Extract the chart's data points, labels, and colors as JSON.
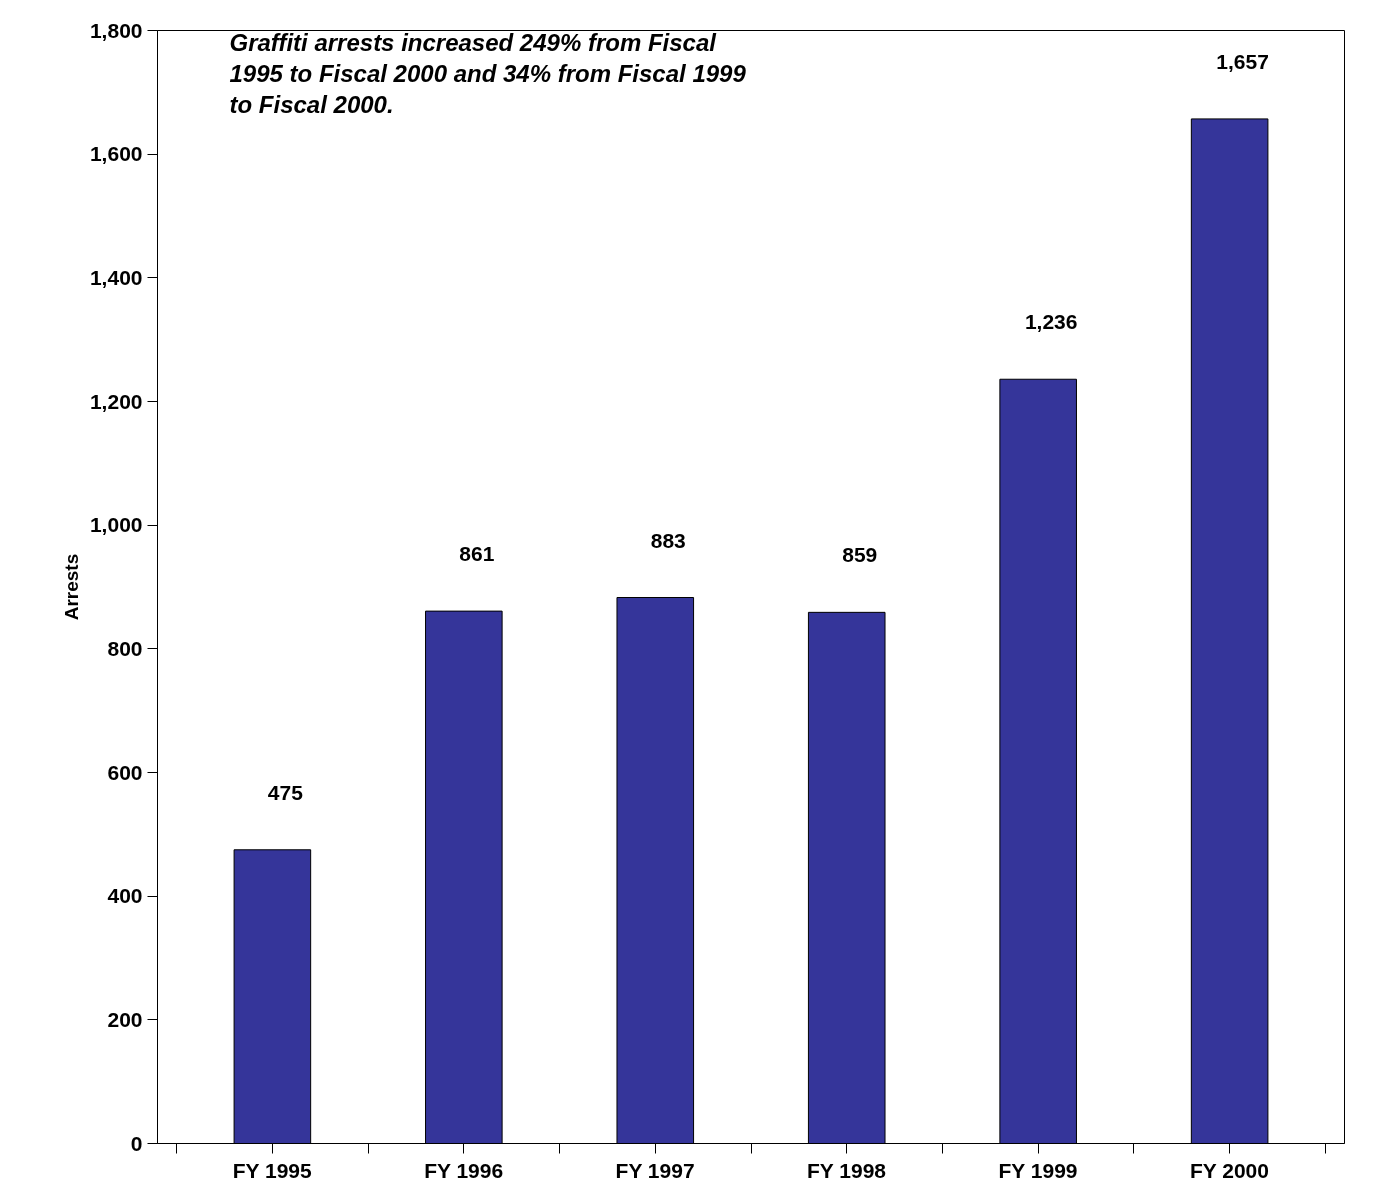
{
  "chart_data": {
    "type": "bar",
    "ylabel": "Arrests",
    "categories": [
      "FY 1995",
      "FY 1996",
      "FY 1997",
      "FY 1998",
      "FY 1999",
      "FY 2000"
    ],
    "values": [
      475,
      861,
      883,
      859,
      1236,
      1657
    ],
    "value_labels": [
      "475",
      "861",
      "883",
      "859",
      "1,236",
      "1,657"
    ],
    "color": "#35359a",
    "ylim": [
      0,
      1800
    ],
    "yticks": [
      0,
      200,
      400,
      600,
      800,
      {
        "value": 1000,
        "label": "1,000"
      },
      {
        "value": 1200,
        "label": "1,200"
      },
      {
        "value": 1400,
        "label": "1,400"
      },
      {
        "value": 1600,
        "label": "1,600"
      },
      {
        "value": 1800,
        "label": "1,800"
      }
    ],
    "grid": false,
    "annotations": [
      "Graffiti arrests increased 249% from Fiscal 1995 to Fiscal 2000 and 34% from Fiscal 1999 to Fiscal 2000."
    ]
  }
}
